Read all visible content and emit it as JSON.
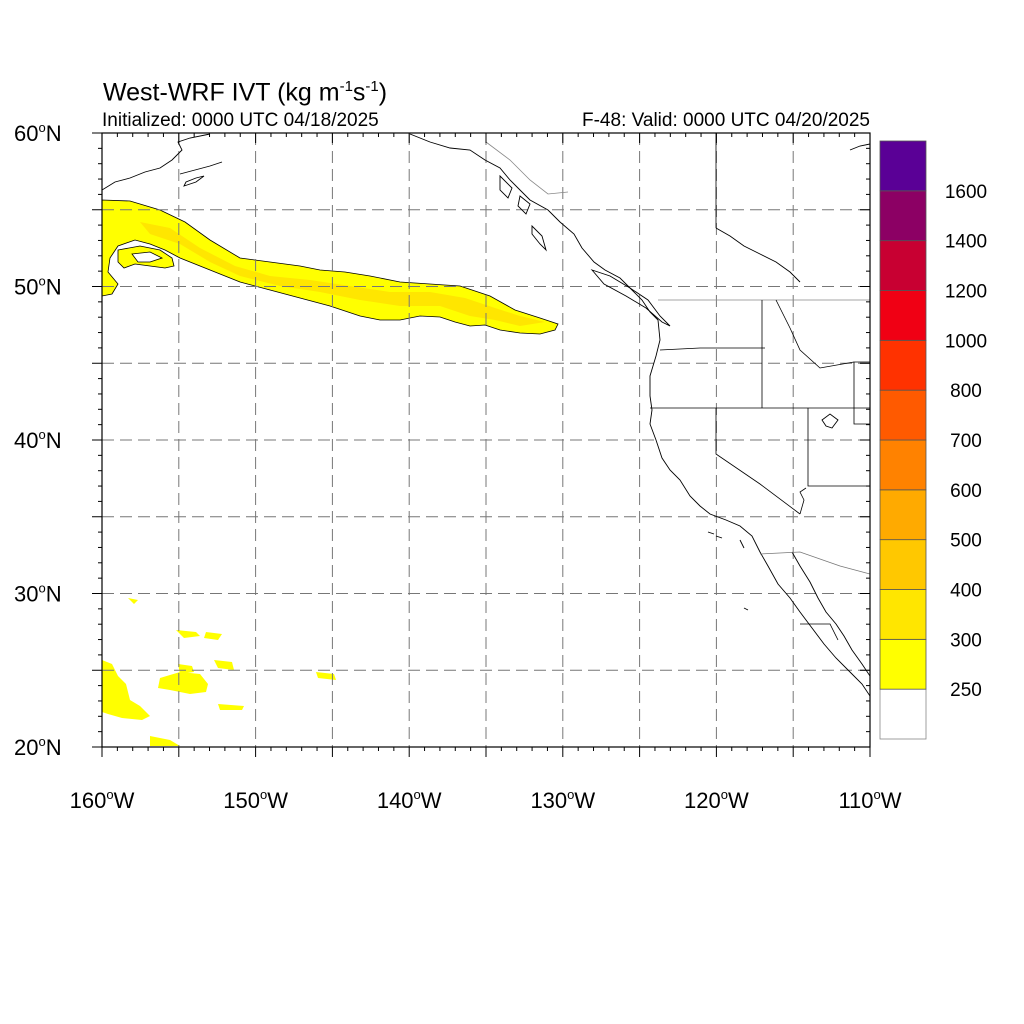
{
  "title": {
    "text": "West-WRF IVT (kg m",
    "exp1": "-1",
    "mid": "s",
    "exp2": "-1",
    "close": ")"
  },
  "initialized": "Initialized: 0000 UTC 04/18/2025",
  "valid": "F-48: Valid: 0000 UTC 04/20/2025",
  "map": {
    "lon_range": [
      -160,
      -110
    ],
    "lat_range": [
      20,
      60
    ],
    "grid": true,
    "grid_step_deg": 5,
    "lon_labels": [
      {
        "lon": -160,
        "text": "160",
        "hemi": "W"
      },
      {
        "lon": -150,
        "text": "150",
        "hemi": "W"
      },
      {
        "lon": -140,
        "text": "140",
        "hemi": "W"
      },
      {
        "lon": -130,
        "text": "130",
        "hemi": "W"
      },
      {
        "lon": -120,
        "text": "120",
        "hemi": "W"
      },
      {
        "lon": -110,
        "text": "110",
        "hemi": "W"
      }
    ],
    "lat_labels": [
      {
        "lat": 60,
        "text": "60",
        "hemi": "N"
      },
      {
        "lat": 50,
        "text": "50",
        "hemi": "N"
      },
      {
        "lat": 40,
        "text": "40",
        "hemi": "N"
      },
      {
        "lat": 30,
        "text": "30",
        "hemi": "N"
      },
      {
        "lat": 20,
        "text": "20",
        "hemi": "N"
      }
    ]
  },
  "colorbar": {
    "levels": [
      {
        "label": "250",
        "color": "#ffffff"
      },
      {
        "label": "300",
        "color": "#ffff00"
      },
      {
        "label": "400",
        "color": "#ffe600"
      },
      {
        "label": "500",
        "color": "#ffc800"
      },
      {
        "label": "600",
        "color": "#ffaa00"
      },
      {
        "label": "700",
        "color": "#ff8200"
      },
      {
        "label": "800",
        "color": "#ff5a00"
      },
      {
        "label": "1000",
        "color": "#ff3200"
      },
      {
        "label": "1200",
        "color": "#f00014"
      },
      {
        "label": "1400",
        "color": "#c80032"
      },
      {
        "label": "1600",
        "color": "#8c0064"
      },
      {
        "label": "",
        "color": "#5a0096"
      }
    ]
  },
  "colors": {
    "ivt_250_300": "#ffff00",
    "ivt_300_400": "#ffe600"
  }
}
